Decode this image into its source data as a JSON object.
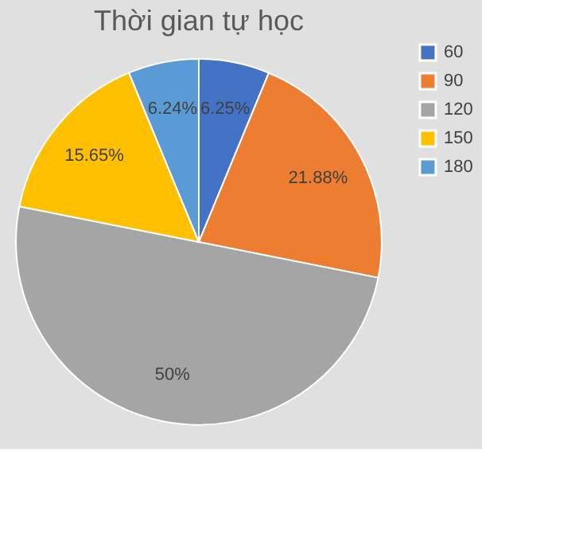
{
  "chart_data": {
    "type": "pie",
    "title": "Thời gian tự học",
    "categories": [
      "60",
      "90",
      "120",
      "150",
      "180"
    ],
    "values": [
      6.25,
      21.88,
      50,
      15.65,
      6.24
    ],
    "value_labels": [
      "6.25%",
      "21.88%",
      "50%",
      "15.65%",
      "6.24%"
    ],
    "colors": [
      "#4472c4",
      "#ed7d31",
      "#a5a5a5",
      "#ffc000",
      "#5b9bd5"
    ],
    "legend": "right"
  }
}
